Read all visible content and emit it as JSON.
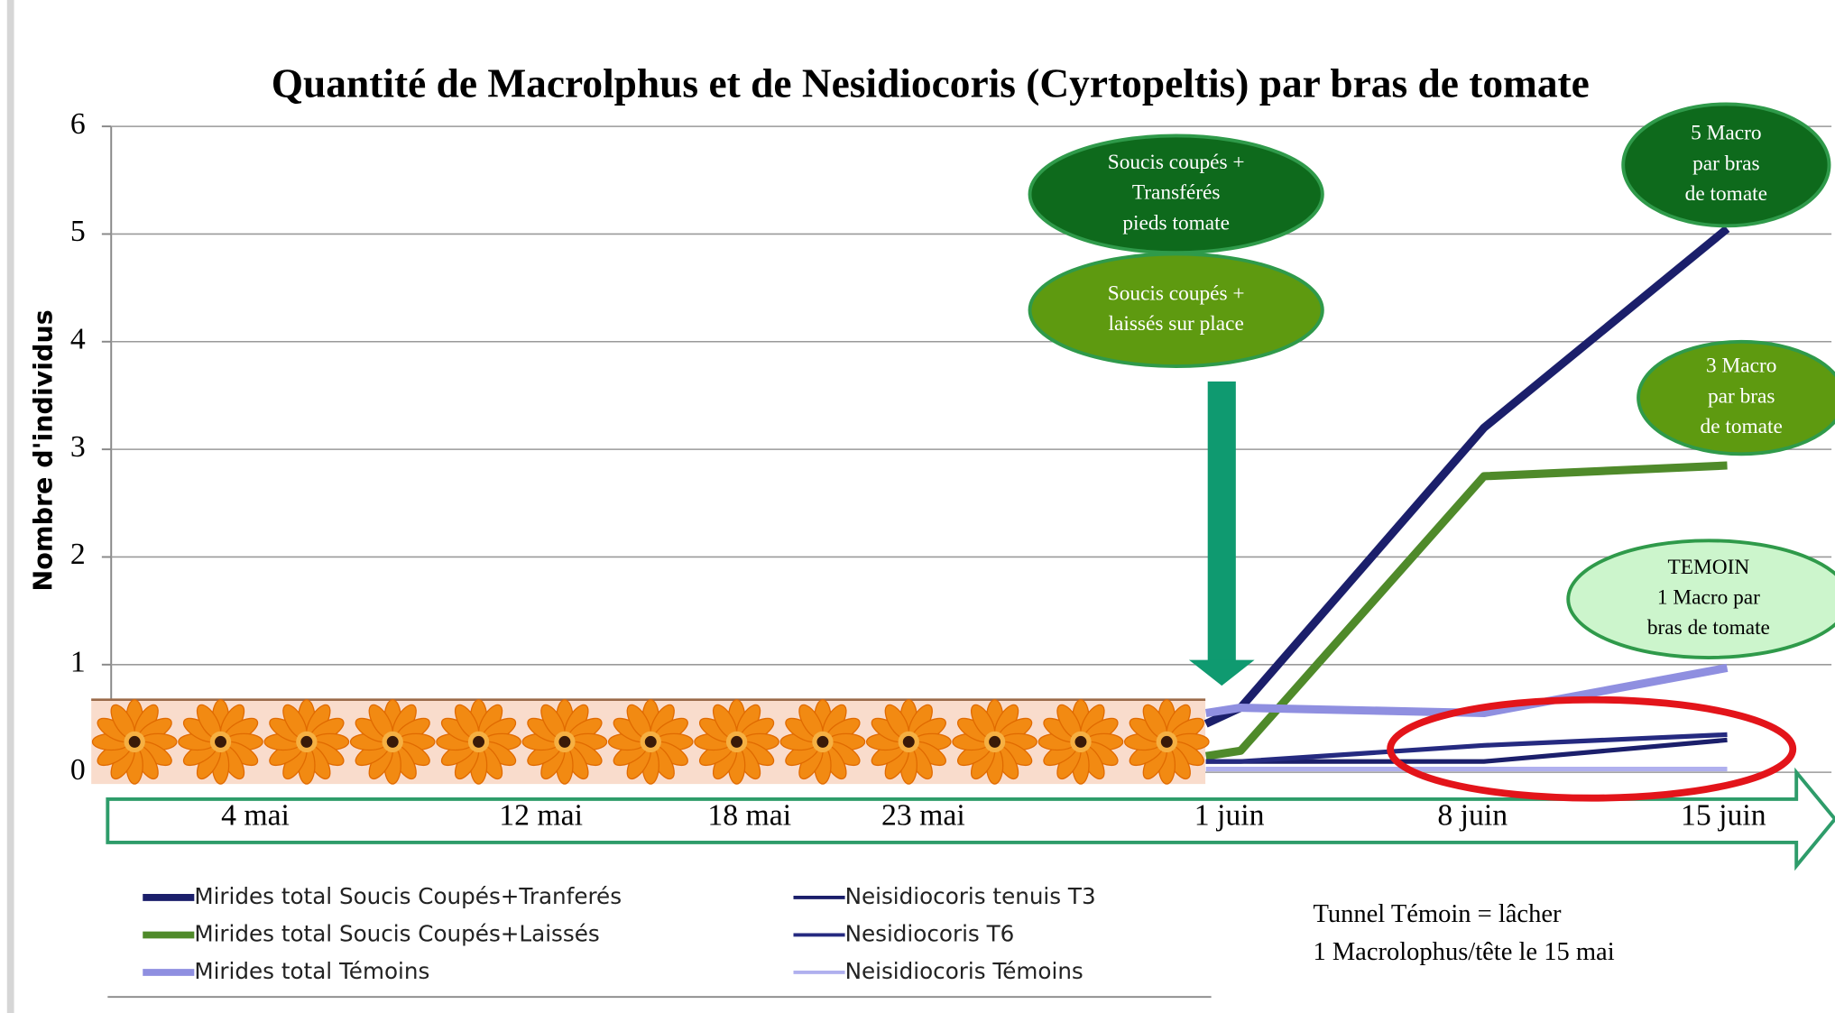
{
  "chart_data": {
    "type": "line",
    "title": "Quantité de Macrolphus et de Nesidiocoris (Cyrtopeltis) par bras de tomate",
    "y_label": "Nombre d'individus",
    "x": [
      32,
      33,
      40,
      47
    ],
    "xlim": [
      0.5,
      50
    ],
    "xticks": [
      {
        "value": 4,
        "label": "4 mai"
      },
      {
        "value": 12,
        "label": "12 mai"
      },
      {
        "value": 18,
        "label": "18 mai"
      },
      {
        "value": 23,
        "label": "23 mai"
      },
      {
        "value": 32,
        "label": "1 juin"
      },
      {
        "value": 39,
        "label": "8 juin"
      },
      {
        "value": 46,
        "label": "15 juin"
      }
    ],
    "ylim": [
      0,
      6
    ],
    "yticks": [
      0,
      1,
      2,
      3,
      4,
      5,
      6
    ],
    "grid": true,
    "series": [
      {
        "name": "Mirides total Soucis Coupés+Tranferés",
        "color": "#1b1f6b",
        "values": [
          0.45,
          0.6,
          3.2,
          5.05
        ]
      },
      {
        "name": "Mirides total Soucis Coupés+Laissés",
        "color": "#4f8a2a",
        "values": [
          0.15,
          0.2,
          2.75,
          2.85
        ]
      },
      {
        "name": "Mirides total Témoins",
        "color": "#8f8fe0",
        "values": [
          0.55,
          0.6,
          0.55,
          0.97
        ]
      },
      {
        "name": "Neisidiocoris tenuis T3",
        "color": "#1b1f6b",
        "values": [
          0.1,
          0.1,
          0.1,
          0.3
        ]
      },
      {
        "name": "Nesidiocoris T6",
        "color": "#252a80",
        "values": [
          0.1,
          0.1,
          0.25,
          0.35
        ]
      },
      {
        "name": "Neisidiocoris Témoins",
        "color": "#b0b0ee",
        "values": [
          0.03,
          0.03,
          0.03,
          0.03
        ]
      }
    ],
    "annotations": [
      {
        "lines": [
          "Soucis coupés +",
          "Transférés",
          "pieds tomate"
        ]
      },
      {
        "lines": [
          "Soucis coupés +",
          "laissés sur place"
        ]
      },
      {
        "lines": [
          "5 Macro",
          "par bras",
          "de tomate"
        ]
      },
      {
        "lines": [
          "3 Macro",
          "par bras",
          "de tomate"
        ]
      },
      {
        "lines": [
          "TEMOIN",
          "1 Macro par",
          "bras de tomate"
        ]
      }
    ],
    "note": [
      "Tunnel Témoin = lâcher",
      "1 Macrolophus/tête le 15 mai"
    ]
  }
}
